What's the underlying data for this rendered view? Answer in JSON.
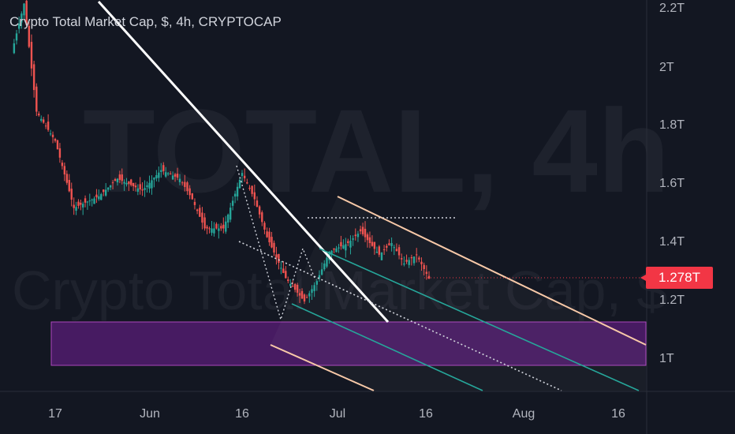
{
  "header": {
    "title": "Crypto Total Market Cap, $, 4h, CRYPTOCAP"
  },
  "watermark": {
    "line1": "TOTAL, 4h",
    "line2": "Crypto Total Market Cap, $"
  },
  "price_axis": {
    "ticks": [
      "2.2T",
      "2T",
      "1.8T",
      "1.6T",
      "1.4T",
      "1.2T",
      "1T"
    ],
    "current_price": "1.278T"
  },
  "time_axis": {
    "ticks": [
      "17",
      "Jun",
      "16",
      "Jul",
      "16",
      "Aug",
      "16"
    ]
  },
  "colors": {
    "background": "#131722",
    "up": "#26a69a",
    "down": "#ef5350",
    "trendline": "#ffffff",
    "channel_outer": "#f8c9a8",
    "channel_inner": "#26a69a",
    "support_zone": "#7b1fa2",
    "price_badge": "#f23645"
  },
  "chart_data": {
    "type": "line",
    "title": "Crypto Total Market Cap, $, 4h, CRYPTOCAP",
    "xlabel": "",
    "ylabel": "",
    "ylim": [
      0.85,
      2.25
    ],
    "x_ticks": [
      "17",
      "Jun",
      "16",
      "Jul",
      "16",
      "Aug",
      "16"
    ],
    "y_ticks": [
      "2.2T",
      "2T",
      "1.8T",
      "1.6T",
      "1.4T",
      "1.2T",
      "1T"
    ],
    "series": [
      {
        "x": [
          "2022-05-10",
          "2022-05-12",
          "2022-05-14",
          "2022-05-17",
          "2022-05-20",
          "2022-05-24",
          "2022-05-27",
          "2022-05-31",
          "2022-06-03",
          "2022-06-06",
          "2022-06-08",
          "2022-06-10",
          "2022-06-13",
          "2022-06-16",
          "2022-06-18",
          "2022-06-20",
          "2022-06-23",
          "2022-06-26",
          "2022-06-28",
          "2022-06-30",
          "2022-07-03",
          "2022-07-05",
          "2022-07-08",
          "2022-07-10",
          "2022-07-12",
          "2022-07-14",
          "2022-07-16"
        ],
        "values": [
          2.05,
          2.22,
          1.85,
          1.75,
          1.52,
          1.56,
          1.62,
          1.58,
          1.65,
          1.62,
          1.55,
          1.45,
          1.45,
          1.64,
          1.55,
          1.42,
          1.28,
          1.2,
          1.27,
          1.37,
          1.4,
          1.44,
          1.36,
          1.4,
          1.33,
          1.36,
          1.278
        ]
      }
    ],
    "last_value": 1.278,
    "drawings": {
      "descending_trendline": true,
      "parallel_channel": true,
      "horizontal_dotted_resistance": 1.48,
      "support_zone": [
        0.98,
        1.12
      ]
    }
  }
}
